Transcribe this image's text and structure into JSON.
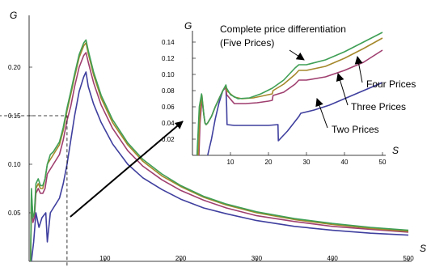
{
  "chart_data": [
    {
      "type": "line",
      "panel": "main",
      "xlabel": "S",
      "ylabel": "G",
      "xlim": [
        0,
        500
      ],
      "ylim": [
        0,
        0.25
      ],
      "xticks": [
        100,
        200,
        300,
        400,
        500
      ],
      "xtick_labels": [
        "100",
        "200",
        "300",
        "400",
        "500"
      ],
      "yticks": [
        0.05,
        0.1,
        0.15,
        0.2
      ],
      "ytick_labels": [
        "0.05",
        "0.10",
        "0.15",
        "0.20"
      ],
      "grid": false,
      "series": [
        {
          "color": "#3f3f9f",
          "x": [
            3,
            6,
            9,
            13,
            17,
            22,
            24,
            28,
            32,
            36,
            40,
            45,
            50,
            55,
            60,
            66,
            72,
            75,
            78,
            85,
            95,
            110,
            130,
            150,
            175,
            200,
            230,
            260,
            300,
            350,
            400,
            450,
            500
          ],
          "y": [
            0.0,
            0.02,
            0.05,
            0.035,
            0.045,
            0.05,
            0.02,
            0.05,
            0.055,
            0.06,
            0.065,
            0.08,
            0.1,
            0.125,
            0.15,
            0.175,
            0.19,
            0.195,
            0.18,
            0.162,
            0.143,
            0.121,
            0.1,
            0.086,
            0.074,
            0.064,
            0.055,
            0.049,
            0.042,
            0.036,
            0.032,
            0.029,
            0.027
          ]
        },
        {
          "color": "#9f3f6f",
          "x": [
            2,
            3,
            5,
            7,
            9,
            12,
            15,
            18,
            21,
            24,
            28,
            32,
            36,
            40,
            45,
            50,
            55,
            60,
            66,
            72,
            75,
            78,
            85,
            95,
            110,
            130,
            150,
            175,
            200,
            230,
            260,
            300,
            350,
            400,
            450,
            500
          ],
          "y": [
            0.0,
            0.065,
            0.04,
            0.045,
            0.07,
            0.075,
            0.07,
            0.07,
            0.075,
            0.09,
            0.095,
            0.1,
            0.105,
            0.11,
            0.125,
            0.145,
            0.16,
            0.18,
            0.2,
            0.212,
            0.215,
            0.205,
            0.184,
            0.161,
            0.137,
            0.114,
            0.098,
            0.084,
            0.073,
            0.063,
            0.055,
            0.047,
            0.041,
            0.036,
            0.033,
            0.03
          ]
        },
        {
          "color": "#a5882c",
          "x": [
            2,
            3,
            5,
            7,
            9,
            12,
            15,
            18,
            21,
            24,
            28,
            32,
            36,
            40,
            45,
            50,
            55,
            60,
            66,
            72,
            75,
            78,
            85,
            95,
            110,
            130,
            150,
            175,
            200,
            230,
            260,
            300,
            350,
            400,
            450,
            500
          ],
          "y": [
            0.0,
            0.07,
            0.045,
            0.05,
            0.075,
            0.08,
            0.075,
            0.075,
            0.085,
            0.1,
            0.105,
            0.11,
            0.115,
            0.12,
            0.135,
            0.155,
            0.172,
            0.19,
            0.21,
            0.222,
            0.225,
            0.214,
            0.192,
            0.168,
            0.143,
            0.12,
            0.103,
            0.088,
            0.077,
            0.066,
            0.058,
            0.05,
            0.043,
            0.038,
            0.034,
            0.031
          ]
        },
        {
          "color": "#3f9f55",
          "x": [
            2,
            3,
            5,
            7,
            9,
            12,
            15,
            18,
            21,
            24,
            28,
            32,
            36,
            40,
            45,
            50,
            55,
            60,
            66,
            72,
            75,
            78,
            85,
            95,
            110,
            130,
            150,
            175,
            200,
            230,
            260,
            300,
            350,
            400,
            450,
            500
          ],
          "y": [
            0.0,
            0.075,
            0.045,
            0.05,
            0.08,
            0.085,
            0.078,
            0.078,
            0.085,
            0.1,
            0.11,
            0.113,
            0.118,
            0.123,
            0.138,
            0.158,
            0.175,
            0.193,
            0.213,
            0.225,
            0.228,
            0.217,
            0.195,
            0.171,
            0.146,
            0.122,
            0.105,
            0.09,
            0.078,
            0.067,
            0.059,
            0.051,
            0.044,
            0.039,
            0.035,
            0.032
          ]
        }
      ]
    },
    {
      "type": "line",
      "panel": "inset",
      "xlabel": "S",
      "ylabel": "G",
      "xlim": [
        0,
        50
      ],
      "ylim": [
        0,
        0.15
      ],
      "xticks": [
        10,
        20,
        30,
        40,
        50
      ],
      "xtick_labels": [
        "10",
        "20",
        "30",
        "40",
        "50"
      ],
      "yticks": [
        0.02,
        0.04,
        0.06,
        0.08,
        0.1,
        0.12,
        0.14
      ],
      "ytick_labels": [
        "0.02",
        "0.04",
        "0.06",
        "0.08",
        "0.10",
        "0.12",
        "0.14"
      ],
      "grid": false,
      "series": [
        {
          "color": "#3f3f9f",
          "x": [
            4,
            5,
            6,
            7,
            8,
            8.8,
            9,
            9.1,
            11,
            14,
            17,
            20,
            22.5,
            22.6,
            23,
            25,
            28,
            28.5,
            32,
            36,
            40,
            45,
            50
          ],
          "y": [
            0.0,
            0.02,
            0.045,
            0.065,
            0.08,
            0.084,
            0.06,
            0.038,
            0.037,
            0.037,
            0.037,
            0.037,
            0.038,
            0.018,
            0.02,
            0.03,
            0.048,
            0.052,
            0.056,
            0.062,
            0.07,
            0.08,
            0.09
          ]
        },
        {
          "color": "#9f3f6f",
          "x": [
            1.7,
            2,
            2.5,
            3,
            3.3,
            3.6,
            4,
            5,
            6,
            7,
            8,
            8.8,
            9,
            11,
            14,
            17,
            20,
            21,
            21.2,
            24,
            27,
            28,
            30,
            35,
            40,
            45,
            50
          ],
          "y": [
            0.0,
            0.04,
            0.07,
            0.05,
            0.04,
            0.038,
            0.04,
            0.048,
            0.06,
            0.07,
            0.08,
            0.084,
            0.075,
            0.064,
            0.064,
            0.065,
            0.067,
            0.068,
            0.074,
            0.078,
            0.088,
            0.093,
            0.093,
            0.097,
            0.105,
            0.115,
            0.13
          ]
        },
        {
          "color": "#a5882c",
          "x": [
            1.5,
            2,
            2.5,
            3,
            3.3,
            3.6,
            4,
            5,
            6,
            7,
            8,
            8.8,
            9,
            11,
            13,
            16,
            19,
            21,
            21.2,
            24,
            27,
            28,
            30,
            35,
            40,
            45,
            50
          ],
          "y": [
            0.0,
            0.055,
            0.074,
            0.05,
            0.04,
            0.038,
            0.04,
            0.048,
            0.06,
            0.07,
            0.08,
            0.086,
            0.08,
            0.072,
            0.07,
            0.071,
            0.074,
            0.076,
            0.08,
            0.088,
            0.1,
            0.105,
            0.105,
            0.11,
            0.12,
            0.132,
            0.145
          ]
        },
        {
          "color": "#3f9f55",
          "x": [
            1.2,
            1.8,
            2.4,
            3,
            3.3,
            3.6,
            4,
            5,
            6,
            7,
            8,
            8.8,
            9,
            10,
            12,
            15,
            18,
            21,
            24,
            27,
            28,
            30,
            35,
            40,
            45,
            50
          ],
          "y": [
            0.0,
            0.06,
            0.076,
            0.05,
            0.04,
            0.038,
            0.04,
            0.048,
            0.06,
            0.07,
            0.08,
            0.087,
            0.083,
            0.075,
            0.07,
            0.071,
            0.076,
            0.083,
            0.093,
            0.108,
            0.112,
            0.112,
            0.118,
            0.128,
            0.14,
            0.152
          ]
        }
      ],
      "annotations": [
        "Complete price differentiation",
        "(Five Prices)",
        "Four Prices",
        "Three Prices",
        "Two Prices"
      ]
    }
  ]
}
